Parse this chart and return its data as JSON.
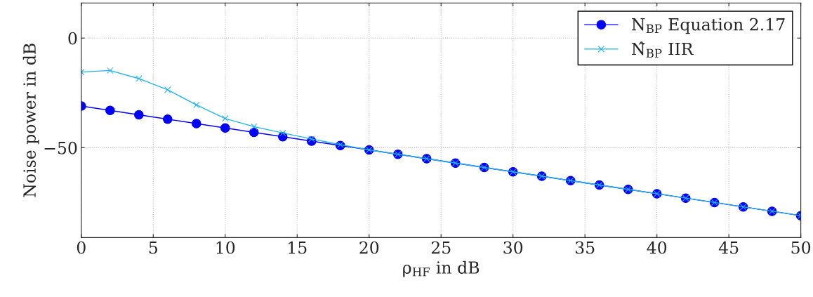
{
  "chart_data": {
    "type": "line",
    "xlabel": "ρ$_{HF}$ in dB",
    "ylabel": "Noise power in dB",
    "x": [
      0,
      2,
      4,
      6,
      8,
      10,
      12,
      14,
      16,
      18,
      20,
      22,
      24,
      26,
      28,
      30,
      32,
      34,
      36,
      38,
      40,
      42,
      44,
      46,
      48,
      50
    ],
    "series": [
      {
        "name": "N$_{BP}$ Equation 2.17",
        "color": "#0000ff",
        "marker": "circle",
        "values": [
          -31,
          -33,
          -35,
          -37,
          -39,
          -41,
          -43,
          -45,
          -47,
          -49,
          -51,
          -53,
          -55,
          -57,
          -59,
          -61,
          -63,
          -65,
          -67,
          -69,
          -71,
          -73,
          -75,
          -77,
          -79,
          -81
        ]
      },
      {
        "name": "N̂$_{BP}$ IIR",
        "color": "#1eb4f0",
        "marker": "cross",
        "values": [
          -15.5,
          -14.8,
          -18.5,
          -23.6,
          -30.5,
          -36.7,
          -40.4,
          -43.3,
          -46,
          -48.6,
          -51,
          -53,
          -55,
          -57,
          -59,
          -61,
          -63,
          -65,
          -67,
          -69,
          -71,
          -73,
          -75,
          -77,
          -79,
          -81
        ]
      }
    ],
    "xlim": [
      0,
      50
    ],
    "xticks": [
      0,
      5,
      10,
      15,
      20,
      25,
      30,
      35,
      40,
      45,
      50
    ],
    "ylim": [
      -91,
      16
    ],
    "yticks": [
      {
        "value": -50,
        "label": "−50"
      },
      0
    ],
    "grid": true,
    "legend": "top right",
    "line_style": "solid"
  }
}
